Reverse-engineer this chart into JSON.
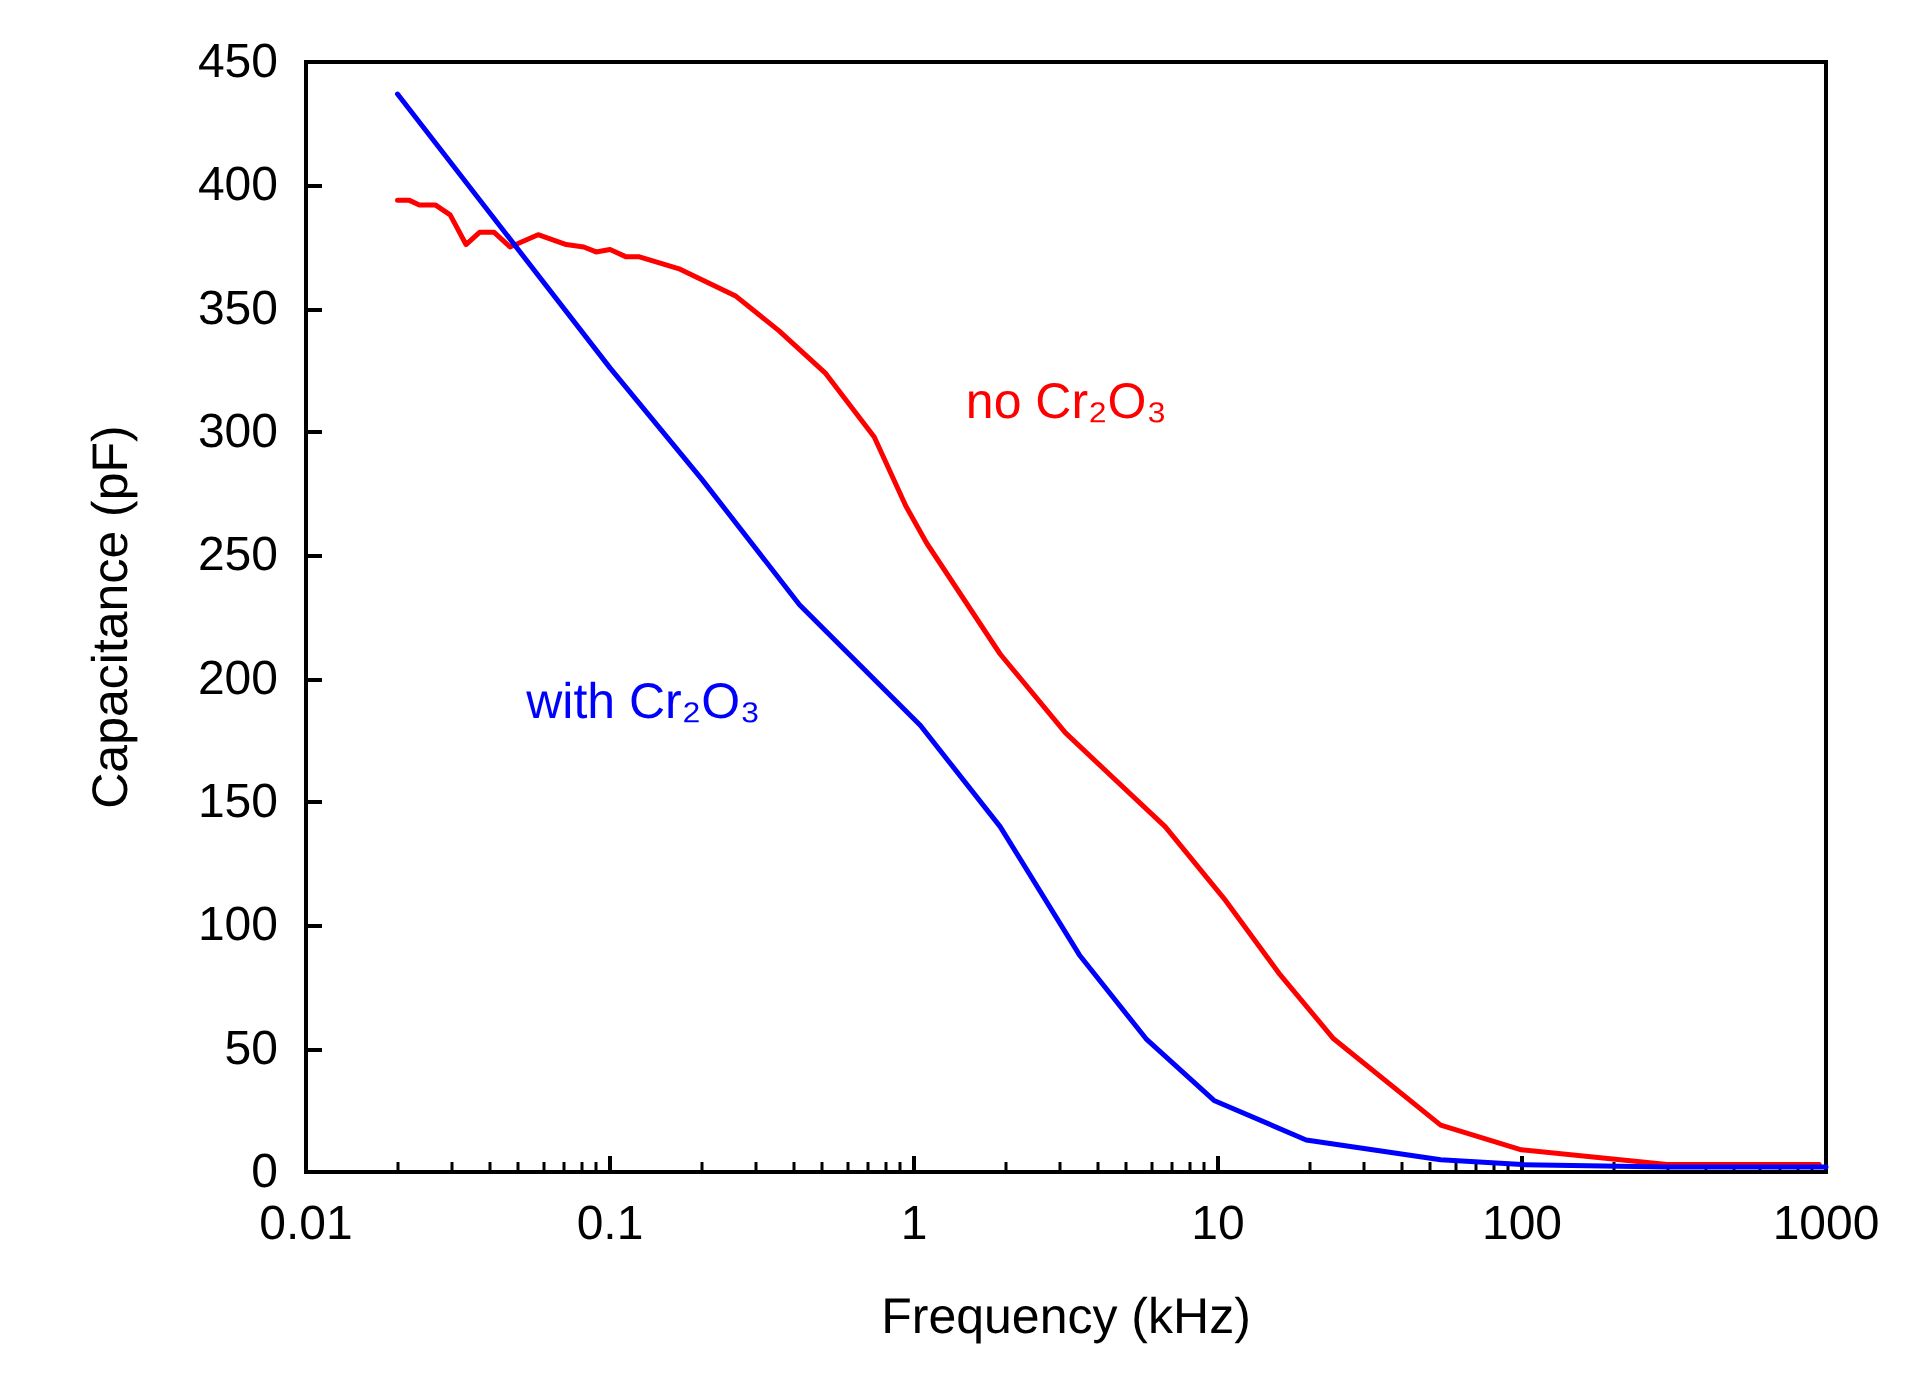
{
  "chart_data": {
    "type": "line",
    "xlabel": "Frequency (kHz)",
    "ylabel": "Capacitance (pF)",
    "log": "x",
    "xlim": [
      0.01,
      1000
    ],
    "xticks": [
      0.01,
      0.1,
      1,
      10,
      100,
      1000
    ],
    "ylim": [
      0,
      450
    ],
    "yticks": [
      0,
      50,
      100,
      150,
      200,
      250,
      300,
      350,
      400,
      450
    ],
    "grid": false,
    "legend": false,
    "marker": "none",
    "line_style": "solid",
    "series": [
      {
        "name": "no Cr₂O₃",
        "color": "#ff0000",
        "x": [
          0.02,
          0.0218,
          0.0236,
          0.0267,
          0.0298,
          0.0336,
          0.0373,
          0.0415,
          0.0469,
          0.058,
          0.0718,
          0.082,
          0.09,
          0.1,
          0.113,
          0.125,
          0.17,
          0.26,
          0.36,
          0.51,
          0.74,
          0.94,
          1.1,
          1.92,
          3.15,
          6.7,
          10.6,
          16,
          24,
          54,
          99.5,
          300,
          950
        ],
        "values": [
          394,
          394,
          392,
          392,
          388,
          376,
          381,
          381,
          375,
          380,
          376,
          375,
          373,
          374,
          371,
          371,
          366,
          355,
          341,
          324,
          298,
          270,
          255,
          210,
          178,
          140,
          110,
          80,
          54,
          19,
          9,
          3,
          3
        ]
      },
      {
        "name": "with Cr₂O₃",
        "color": "#0000ff",
        "x": [
          0.02,
          0.1,
          0.2,
          0.42,
          1.05,
          1.92,
          3.5,
          5.8,
          9.7,
          19.5,
          54,
          100,
          300,
          1000
        ],
        "values": [
          437,
          326,
          281,
          230,
          181,
          140,
          88,
          54,
          29,
          13,
          5,
          3,
          2,
          2
        ]
      }
    ]
  }
}
